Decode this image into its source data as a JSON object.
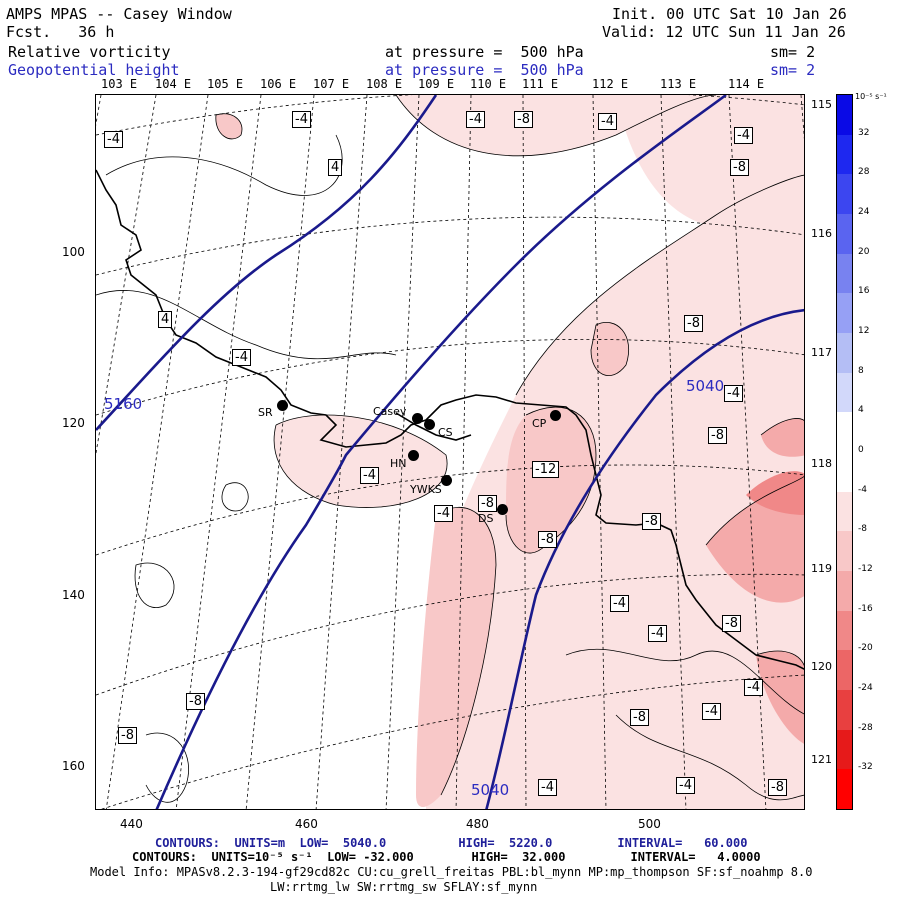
{
  "header": {
    "title": "AMPS MPAS -- Casey Window",
    "forecast": "Fcst.   36 h",
    "init": "Init. 00 UTC Sat 10 Jan 26",
    "valid": "Valid: 12 UTC Sun 11 Jan 26",
    "field1": "Relative vorticity",
    "field1_level": "at pressure =  500 hPa",
    "field1_smooth": "sm= 2",
    "field2": "Geopotential height",
    "field2_level": "at pressure =  500 hPa",
    "field2_smooth": "sm= 2"
  },
  "longitude_labels": [
    "103 E",
    "104 E",
    "105 E",
    "106 E",
    "107 E",
    "108 E",
    "109 E",
    "110 E",
    "111 E",
    "112 E",
    "113 E",
    "114 E"
  ],
  "latitude_labels": [
    "115 E",
    "116 E",
    "117 E",
    "118 E",
    "119 E",
    "120 E",
    "121 E"
  ],
  "x_axis_ticks": [
    "440",
    "460",
    "480",
    "500"
  ],
  "y_axis_ticks": [
    "100",
    "120",
    "140",
    "160"
  ],
  "stations": [
    {
      "name": "SR"
    },
    {
      "name": "Casey"
    },
    {
      "name": "CS"
    },
    {
      "name": "HN"
    },
    {
      "name": "YWKS"
    },
    {
      "name": "DS"
    },
    {
      "name": "CP"
    }
  ],
  "vorticity_labels": [
    "-4",
    "-4",
    "4",
    "-4",
    "-8",
    "-4",
    "-8",
    "-4",
    "-8",
    "4",
    "-4",
    "-8",
    "-4",
    "-12",
    "-8",
    "-4",
    "-8",
    "-8",
    "-4",
    "-4",
    "-8",
    "-4",
    "-8",
    "-4",
    "-4",
    "-8",
    "-8",
    "-4",
    "-4",
    "-8"
  ],
  "height_labels": [
    "5160",
    "5040",
    "5040"
  ],
  "colorbar": {
    "units": "10⁻⁵ s⁻¹",
    "ticks": [
      "32",
      "28",
      "24",
      "20",
      "16",
      "12",
      "8",
      "4",
      "0",
      "-4",
      "-8",
      "-12",
      "-16",
      "-20",
      "-24",
      "-28",
      "-32"
    ],
    "colors": [
      "#0a0ae6",
      "#1e28f0",
      "#3c46f0",
      "#5a64f0",
      "#7882f0",
      "#96a0f5",
      "#b4bef5",
      "#d2d8fa",
      "#ffffff",
      "#ffffff",
      "#fbe2e2",
      "#f8c8c8",
      "#f4aaaa",
      "#f08888",
      "#ec6666",
      "#e84040",
      "#e61a1a",
      "#ff0000"
    ]
  },
  "footer": {
    "line1": "CONTOURS:  UNITS=m  LOW=  5040.0          HIGH=  5220.0         INTERVAL=   60.000",
    "line2": "CONTOURS:  UNITS=10⁻⁵ s⁻¹  LOW= -32.000        HIGH=  32.000         INTERVAL=   4.0000",
    "line3": "Model Info: MPASv8.2.3-194-gf29cd82c CU:cu_grell_freitas PBL:bl_mynn MP:mp_thompson SF:sf_noahmp 8.0",
    "line4": "LW:rrtmg_lw SW:rrtmg_sw SFLAY:sf_mynn"
  },
  "colors": {
    "height_contour": "#1a1a8c",
    "text_blue": "#2b2bc0"
  }
}
